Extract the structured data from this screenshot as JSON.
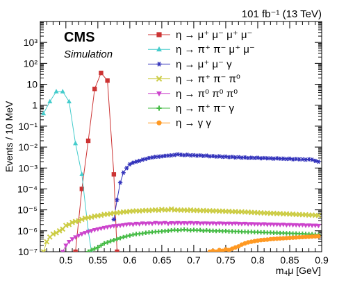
{
  "header": {
    "lumi": "101 fb⁻¹ (13 TeV)",
    "experiment": "CMS",
    "status": "Simulation"
  },
  "chart_data": {
    "type": "line",
    "xlabel": "m₄μ [GeV]",
    "ylabel": "Events / 10 MeV",
    "xlim": [
      0.46,
      0.9
    ],
    "ylim_log10": [
      -7,
      4
    ],
    "yscale": "log",
    "grid": false,
    "legend_position": "top-right",
    "x_ticks": [
      "0.5",
      "0.55",
      "0.6",
      "0.65",
      "0.7",
      "0.75",
      "0.8",
      "0.85",
      "0.9"
    ],
    "y_ticks": [
      "10⁻⁷",
      "10⁻⁶",
      "10⁻⁵",
      "10⁻⁴",
      "10⁻³",
      "10⁻²",
      "10⁻¹",
      "1",
      "10",
      "10²",
      "10³"
    ],
    "series": [
      {
        "name": "η → μ⁺ μ⁻ μ⁺ μ⁻",
        "color": "#cc3333",
        "marker": "square",
        "x": [
          0.515,
          0.525,
          0.535,
          0.545,
          0.555,
          0.565,
          0.575,
          0.58
        ],
        "y": [
          1e-07,
          0.0001,
          0.02,
          6,
          35,
          15,
          0.0005,
          1e-07
        ]
      },
      {
        "name": "η → π⁺ π⁻ μ⁺ μ⁻",
        "color": "#44cccc",
        "marker": "triangle-up",
        "x": [
          0.465,
          0.475,
          0.485,
          0.495,
          0.505,
          0.515,
          0.525,
          0.535,
          0.54
        ],
        "y": [
          0.4,
          1.5,
          4.5,
          4.5,
          1.5,
          0.015,
          0.0005,
          1e-06,
          1e-07
        ]
      },
      {
        "name": "η → μ⁺ μ⁻ γ",
        "color": "#3333bb",
        "marker": "star",
        "x": [
          0.575,
          0.58,
          0.585,
          0.59,
          0.595,
          0.6,
          0.605,
          0.61,
          0.615,
          0.62,
          0.625,
          0.63,
          0.635,
          0.64,
          0.645,
          0.65,
          0.655,
          0.66,
          0.665,
          0.67,
          0.675,
          0.68,
          0.685,
          0.69,
          0.695,
          0.7,
          0.705,
          0.71,
          0.715,
          0.72,
          0.725,
          0.73,
          0.735,
          0.74,
          0.745,
          0.75,
          0.755,
          0.76,
          0.765,
          0.77,
          0.775,
          0.78,
          0.785,
          0.79,
          0.795,
          0.8,
          0.805,
          0.81,
          0.815,
          0.82,
          0.825,
          0.83,
          0.835,
          0.84,
          0.845,
          0.85,
          0.855,
          0.86,
          0.865,
          0.87,
          0.875,
          0.88,
          0.885,
          0.89,
          0.895
        ],
        "y": [
          3.5e-06,
          3e-05,
          0.0002,
          0.0006,
          0.001,
          0.0015,
          0.0018,
          0.002,
          0.0022,
          0.0025,
          0.0027,
          0.003,
          0.0032,
          0.0034,
          0.0035,
          0.0036,
          0.0038,
          0.0039,
          0.004,
          0.0042,
          0.0045,
          0.0043,
          0.0041,
          0.0043,
          0.004,
          0.0041,
          0.0039,
          0.004,
          0.0038,
          0.0039,
          0.0036,
          0.0037,
          0.0035,
          0.0036,
          0.0034,
          0.0035,
          0.0033,
          0.0034,
          0.0032,
          0.0033,
          0.0031,
          0.0032,
          0.003,
          0.0031,
          0.003,
          0.0031,
          0.0029,
          0.003,
          0.0029,
          0.0029,
          0.0028,
          0.0029,
          0.0028,
          0.0028,
          0.0027,
          0.0028,
          0.0026,
          0.0027,
          0.0026,
          0.0026,
          0.0025,
          0.0026,
          0.0025,
          0.0022,
          0.002
        ]
      },
      {
        "name": "η → π⁺ π⁻ π⁰",
        "color": "#cccc44",
        "marker": "x",
        "x": [
          0.465,
          0.47,
          0.475,
          0.48,
          0.485,
          0.49,
          0.495,
          0.5,
          0.505,
          0.51,
          0.515,
          0.52,
          0.525,
          0.53,
          0.535,
          0.54,
          0.545,
          0.55,
          0.555,
          0.56,
          0.565,
          0.57,
          0.575,
          0.58,
          0.585,
          0.59,
          0.595,
          0.6,
          0.605,
          0.61,
          0.615,
          0.62,
          0.625,
          0.63,
          0.635,
          0.64,
          0.645,
          0.65,
          0.655,
          0.66,
          0.665,
          0.67,
          0.675,
          0.68,
          0.685,
          0.69,
          0.695,
          0.7,
          0.705,
          0.71,
          0.715,
          0.72,
          0.725,
          0.73,
          0.735,
          0.74,
          0.745,
          0.75,
          0.755,
          0.76,
          0.765,
          0.77,
          0.775,
          0.78,
          0.785,
          0.79,
          0.795,
          0.8,
          0.805,
          0.81,
          0.815,
          0.82,
          0.825,
          0.83,
          0.835,
          0.84,
          0.845,
          0.85,
          0.855,
          0.86,
          0.865,
          0.87,
          0.875,
          0.88,
          0.885,
          0.89,
          0.895
        ],
        "y": [
          1e-07,
          3e-07,
          5e-07,
          7e-07,
          8e-07,
          1e-06,
          1.2e-06,
          1.8e-06,
          2e-06,
          2.5e-06,
          2.8e-06,
          3e-06,
          3.5e-06,
          4e-06,
          4.2e-06,
          4.5e-06,
          5e-06,
          5.2e-06,
          5.5e-06,
          6e-06,
          6.2e-06,
          6.5e-06,
          7e-06,
          7.2e-06,
          7.5e-06,
          8e-06,
          8e-06,
          8.5e-06,
          8.7e-06,
          9e-06,
          8.8e-06,
          9.2e-06,
          9.5e-06,
          9.2e-06,
          9.7e-06,
          1e-05,
          9.5e-06,
          1.05e-05,
          9.8e-06,
          1e-05,
          1.1e-05,
          9.8e-06,
          1e-05,
          9.6e-06,
          9.9e-06,
          9.4e-06,
          1e-05,
          9.3e-06,
          9.6e-06,
          9.1e-06,
          9.4e-06,
          9e-06,
          9.2e-06,
          8.8e-06,
          9e-06,
          8.6e-06,
          8.8e-06,
          8.4e-06,
          8.6e-06,
          8.2e-06,
          8.3e-06,
          8e-06,
          8.1e-06,
          7.8e-06,
          7.9e-06,
          7.5e-06,
          7.6e-06,
          7.2e-06,
          7.3e-06,
          7e-06,
          7.1e-06,
          6.8e-06,
          6.9e-06,
          6.6e-06,
          6.7e-06,
          6.4e-06,
          6.5e-06,
          6.2e-06,
          6.3e-06,
          6e-06,
          6.1e-06,
          5.8e-06,
          5.9e-06,
          5.6e-06,
          5.7e-06,
          5.5e-06,
          5.4e-06
        ]
      },
      {
        "name": "η → π⁰ π⁰ π⁰",
        "color": "#cc44cc",
        "marker": "triangle-down",
        "x": [
          0.495,
          0.5,
          0.505,
          0.51,
          0.515,
          0.52,
          0.525,
          0.53,
          0.535,
          0.54,
          0.545,
          0.55,
          0.555,
          0.56,
          0.565,
          0.57,
          0.575,
          0.58,
          0.585,
          0.59,
          0.595,
          0.6,
          0.605,
          0.61,
          0.615,
          0.62,
          0.625,
          0.63,
          0.635,
          0.64,
          0.645,
          0.65,
          0.655,
          0.66,
          0.665,
          0.67,
          0.675,
          0.68,
          0.685,
          0.69,
          0.695,
          0.7,
          0.705,
          0.71,
          0.715,
          0.72,
          0.725,
          0.73,
          0.735,
          0.74,
          0.745,
          0.75,
          0.755,
          0.76,
          0.765,
          0.77,
          0.775,
          0.78,
          0.785,
          0.79,
          0.795,
          0.8,
          0.805,
          0.81,
          0.815,
          0.82,
          0.825,
          0.83,
          0.835,
          0.84,
          0.845,
          0.85,
          0.855,
          0.86,
          0.865,
          0.87,
          0.875,
          0.88,
          0.885,
          0.89,
          0.895
        ],
        "y": [
          1e-07,
          2e-07,
          3e-07,
          4e-07,
          5e-07,
          6e-07,
          7e-07,
          8e-07,
          9e-07,
          1e-06,
          1.1e-06,
          1.2e-06,
          1.3e-06,
          1.4e-06,
          1.5e-06,
          1.6e-06,
          1.7e-06,
          1.75e-06,
          1.8e-06,
          1.9e-06,
          2e-06,
          2.1e-06,
          2e-06,
          2.2e-06,
          2.1e-06,
          2.3e-06,
          2.2e-06,
          2.3e-06,
          2.2e-06,
          2.4e-06,
          2.3e-06,
          2.3e-06,
          2.4e-06,
          2.2e-06,
          2.35e-06,
          2.3e-06,
          2.4e-06,
          2.3e-06,
          2.35e-06,
          2.3e-06,
          2.4e-06,
          2.3e-06,
          2.35e-06,
          2.25e-06,
          2.3e-06,
          2.3e-06,
          2.25e-06,
          2.3e-06,
          2.2e-06,
          2.3e-06,
          2.25e-06,
          2.2e-06,
          2.25e-06,
          2.2e-06,
          2.25e-06,
          2.2e-06,
          2.15e-06,
          2.2e-06,
          2.1e-06,
          2.15e-06,
          2.1e-06,
          2.1e-06,
          2.05e-06,
          2.1e-06,
          2e-06,
          2.05e-06,
          2e-06,
          2e-06,
          1.95e-06,
          2e-06,
          1.9e-06,
          1.95e-06,
          1.9e-06,
          1.9e-06,
          1.85e-06,
          1.9e-06,
          1.8e-06,
          1.85e-06,
          1.8e-06,
          1.8e-06,
          1.75e-06
        ]
      },
      {
        "name": "η → π⁺ π⁻ γ",
        "color": "#44bb44",
        "marker": "plus",
        "x": [
          0.535,
          0.54,
          0.545,
          0.55,
          0.555,
          0.56,
          0.565,
          0.57,
          0.575,
          0.58,
          0.585,
          0.59,
          0.595,
          0.6,
          0.605,
          0.61,
          0.615,
          0.62,
          0.625,
          0.63,
          0.635,
          0.64,
          0.645,
          0.65,
          0.655,
          0.66,
          0.665,
          0.67,
          0.675,
          0.68,
          0.685,
          0.69,
          0.695,
          0.7,
          0.705,
          0.71,
          0.715,
          0.72,
          0.725,
          0.73,
          0.735,
          0.74,
          0.745,
          0.75,
          0.755,
          0.76,
          0.765,
          0.77,
          0.775,
          0.78,
          0.785,
          0.79,
          0.795,
          0.8,
          0.805,
          0.81,
          0.815,
          0.82,
          0.825,
          0.83,
          0.835,
          0.84,
          0.845,
          0.85,
          0.855,
          0.86,
          0.865,
          0.87,
          0.875,
          0.88,
          0.885,
          0.89,
          0.895
        ],
        "y": [
          1e-07,
          1.2e-07,
          1.4e-07,
          1.6e-07,
          2e-07,
          2.5e-07,
          2.8e-07,
          3.2e-07,
          3.6e-07,
          4e-07,
          4.5e-07,
          5e-07,
          5.5e-07,
          6e-07,
          6.5e-07,
          7e-07,
          7.2e-07,
          7.5e-07,
          8e-07,
          8.3e-07,
          8.6e-07,
          9e-07,
          9.2e-07,
          9.5e-07,
          9.8e-07,
          1e-06,
          1.05e-06,
          1.1e-06,
          1.05e-06,
          1.1e-06,
          1.15e-06,
          1.1e-06,
          1.05e-06,
          1.1e-06,
          1.05e-06,
          1.08e-06,
          1e-06,
          1.05e-06,
          1e-06,
          1e-06,
          9.8e-07,
          1e-06,
          9.6e-07,
          9.8e-07,
          9.4e-07,
          9.5e-07,
          9.2e-07,
          9.3e-07,
          9e-07,
          9e-07,
          8.8e-07,
          8.9e-07,
          8.6e-07,
          8.7e-07,
          8.4e-07,
          8.4e-07,
          8.2e-07,
          8.2e-07,
          8e-07,
          8e-07,
          7.8e-07,
          7.8e-07,
          7.6e-07,
          7.6e-07,
          7.4e-07,
          7.4e-07,
          7.2e-07,
          7.2e-07,
          7e-07,
          6.9e-07,
          6.8e-07,
          6.6e-07,
          6.4e-07
        ]
      },
      {
        "name": "η → γ γ",
        "color": "#ff9922",
        "marker": "circle",
        "x": [
          0.725,
          0.73,
          0.735,
          0.74,
          0.745,
          0.75,
          0.755,
          0.76,
          0.765,
          0.77,
          0.775,
          0.78,
          0.785,
          0.79,
          0.795,
          0.8,
          0.805,
          0.81,
          0.815,
          0.82,
          0.825,
          0.83,
          0.835,
          0.84,
          0.845,
          0.85,
          0.855,
          0.86,
          0.865,
          0.87,
          0.875,
          0.88,
          0.885,
          0.89,
          0.895
        ],
        "y": [
          1e-07,
          1.1e-07,
          1e-07,
          1.2e-07,
          1.1e-07,
          1.3e-07,
          1.2e-07,
          1.4e-07,
          1.6e-07,
          1.8e-07,
          2.2e-07,
          2.5e-07,
          2.8e-07,
          3e-07,
          3.2e-07,
          3.4e-07,
          3.6e-07,
          3.7e-07,
          3.8e-07,
          4e-07,
          4.1e-07,
          4.2e-07,
          4.3e-07,
          4.4e-07,
          4.5e-07,
          4.6e-07,
          4.7e-07,
          4.8e-07,
          4.9e-07,
          5e-07,
          5.1e-07,
          5.2e-07,
          5.3e-07,
          5.4e-07,
          5.5e-07
        ]
      }
    ]
  }
}
